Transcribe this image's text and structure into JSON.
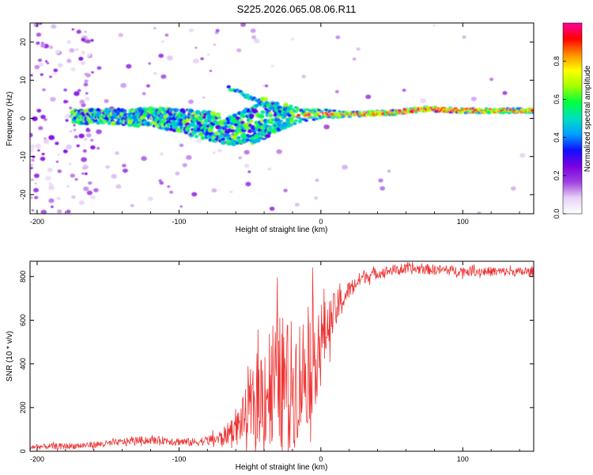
{
  "title": "S225.2026.065.08.06.R11",
  "chart_data": [
    {
      "type": "heatmap",
      "xlabel": "Height of straight line (km)",
      "ylabel": "Frequency (Hz)",
      "xlim": [
        -205,
        150
      ],
      "ylim": [
        -25,
        25
      ],
      "xticks": [
        -200,
        -100,
        0,
        100
      ],
      "yticks": [
        -20,
        -10,
        0,
        10,
        20
      ],
      "colorbar": {
        "label": "Normalized spectral amplitude",
        "range": [
          0,
          1
        ],
        "ticks": [
          0.0,
          0.2,
          0.4,
          0.6,
          0.8
        ],
        "colors": [
          "#ffffff",
          "#e6d2f5",
          "#a040e0",
          "#7a00e0",
          "#1010ff",
          "#00a0ff",
          "#00e0c0",
          "#00ff40",
          "#a0ff00",
          "#ffff00",
          "#ff9000",
          "#ff0000",
          "#ff00a0"
        ]
      },
      "ridge": [
        {
          "x": -170,
          "freq": 0.5,
          "spread": 3
        },
        {
          "x": -150,
          "freq": 0.5,
          "spread": 3
        },
        {
          "x": -120,
          "freq": 0.2,
          "spread": 4
        },
        {
          "x": -100,
          "freq": -0.5,
          "spread": 5
        },
        {
          "x": -80,
          "freq": -2,
          "spread": 6
        },
        {
          "x": -65,
          "freq": -3,
          "spread": 6
        },
        {
          "x": -50,
          "freq": -2,
          "spread": 8
        },
        {
          "x": -40,
          "freq": 0,
          "spread": 9
        },
        {
          "x": -30,
          "freq": 0.5,
          "spread": 6
        },
        {
          "x": -15,
          "freq": 0.8,
          "spread": 3
        },
        {
          "x": 0,
          "freq": 1.2,
          "spread": 2
        },
        {
          "x": 20,
          "freq": 1.0,
          "spread": 1
        },
        {
          "x": 50,
          "freq": 1.5,
          "spread": 1
        },
        {
          "x": 75,
          "freq": 2.5,
          "spread": 1
        },
        {
          "x": 100,
          "freq": 2.0,
          "spread": 1
        },
        {
          "x": 150,
          "freq": 2.0,
          "spread": 1
        }
      ]
    },
    {
      "type": "line",
      "xlabel": "Height of straight line (km)",
      "ylabel": "SNR (10 * v/v)",
      "xlim": [
        -205,
        150
      ],
      "ylim": [
        0,
        870
      ],
      "xticks": [
        -200,
        -100,
        0,
        100
      ],
      "yticks": [
        0,
        200,
        400,
        600,
        800
      ],
      "series": [
        {
          "name": "SNR",
          "color": "#ee3333",
          "trend": {
            "x": [
              -205,
              -170,
              -150,
              -130,
              -110,
              -90,
              -70,
              -60,
              -50,
              -40,
              -30,
              -20,
              -10,
              0,
              10,
              20,
              30,
              50,
              70,
              100,
              150
            ],
            "y": [
              20,
              25,
              35,
              50,
              50,
              40,
              60,
              110,
              180,
              280,
              320,
              300,
              380,
              500,
              640,
              740,
              800,
              830,
              835,
              825,
              820
            ]
          },
          "noise_amplitude": {
            "x": [
              -205,
              -80,
              -60,
              -45,
              -35,
              -20,
              -5,
              5,
              20,
              40,
              150
            ],
            "y": [
              12,
              20,
              60,
              200,
              320,
              300,
              260,
              120,
              40,
              25,
              20
            ]
          }
        }
      ]
    }
  ]
}
